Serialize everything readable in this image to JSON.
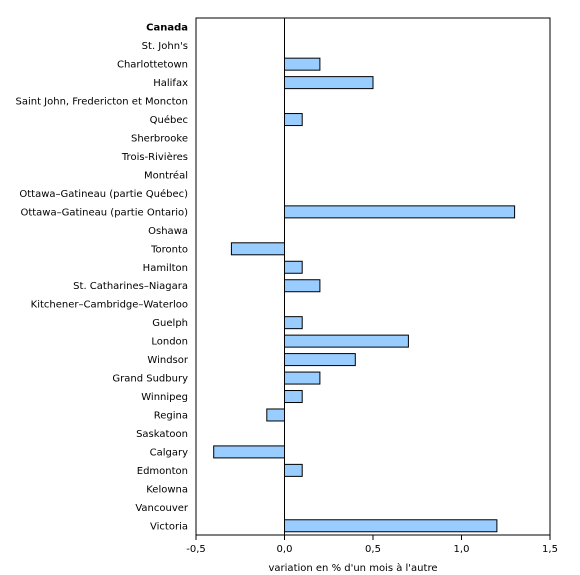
{
  "chart_data": {
    "type": "bar",
    "orientation": "horizontal",
    "title": "",
    "xlabel": "variation en % d'un mois à l'autre",
    "ylabel": "",
    "xlim": [
      -0.5,
      1.5
    ],
    "xticks": [
      -0.5,
      0.0,
      0.5,
      1.0,
      1.5
    ],
    "xtick_labels": [
      "-0,5",
      "0,0",
      "0,5",
      "1,0",
      "1,5"
    ],
    "grid": false,
    "bar_color": "#99ccff",
    "bold_categories": [
      "Canada"
    ],
    "categories": [
      "Canada",
      "St. John's",
      "Charlottetown",
      "Halifax",
      "Saint John, Fredericton et Moncton",
      "Québec",
      "Sherbrooke",
      "Trois-Rivières",
      "Montréal",
      "Ottawa–Gatineau (partie Québec)",
      "Ottawa–Gatineau (partie Ontario)",
      "Oshawa",
      "Toronto",
      "Hamilton",
      "St. Catharines–Niagara",
      "Kitchener–Cambridge–Waterloo",
      "Guelph",
      "London",
      "Windsor",
      "Grand Sudbury",
      "Winnipeg",
      "Regina",
      "Saskatoon",
      "Calgary",
      "Edmonton",
      "Kelowna",
      "Vancouver",
      "Victoria"
    ],
    "values": [
      0.0,
      0.0,
      0.2,
      0.5,
      0.0,
      0.1,
      0.0,
      0.0,
      0.0,
      0.0,
      1.3,
      0.0,
      -0.3,
      0.1,
      0.2,
      0.0,
      0.1,
      0.7,
      0.4,
      0.2,
      0.1,
      -0.1,
      0.0,
      -0.4,
      0.1,
      0.0,
      0.0,
      1.2
    ]
  }
}
